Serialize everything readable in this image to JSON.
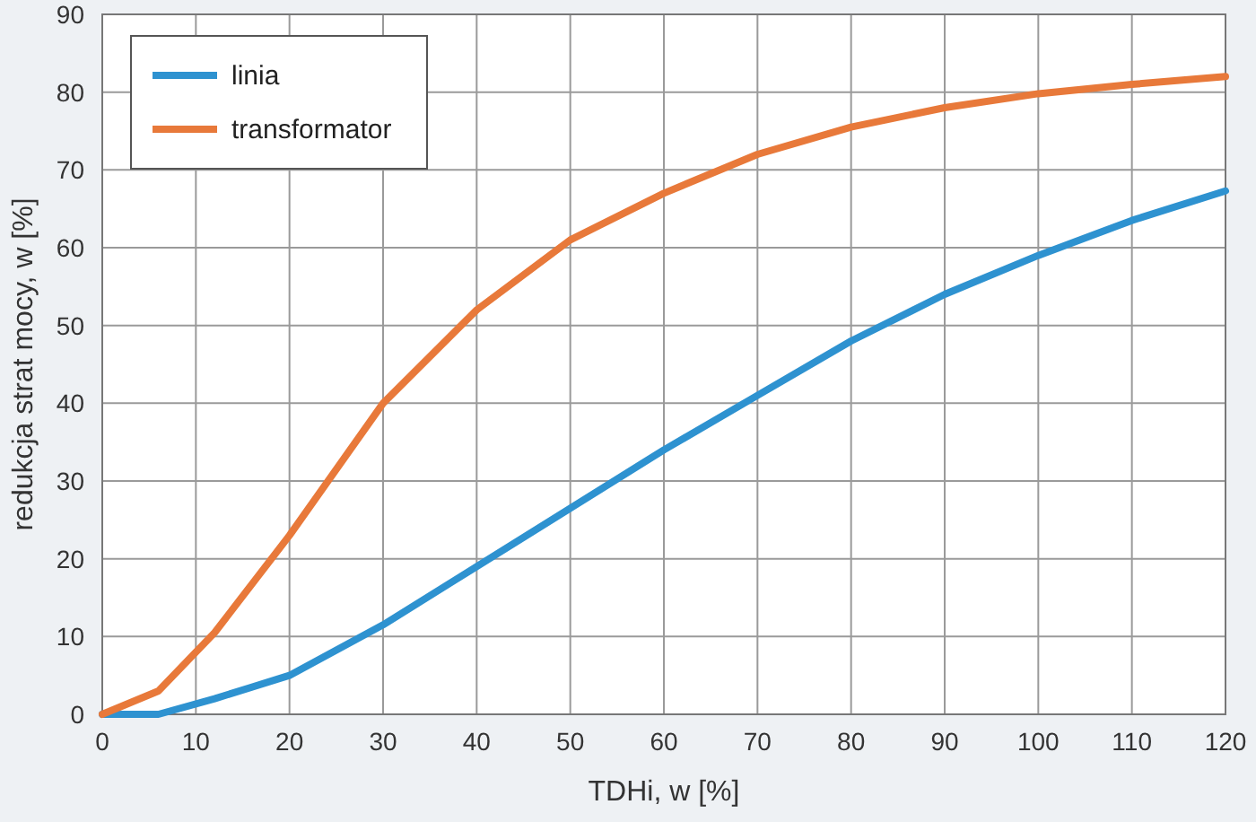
{
  "chart_data": {
    "type": "line",
    "xlabel": "TDHi, w [%]",
    "ylabel": "redukcja strat mocy, w [%]",
    "xlim": [
      0,
      120
    ],
    "xticks": [
      0,
      10,
      20,
      30,
      40,
      50,
      60,
      70,
      80,
      90,
      100,
      110,
      120
    ],
    "ylim": [
      0,
      90
    ],
    "yticks": [
      0,
      10,
      20,
      30,
      40,
      50,
      60,
      70,
      80,
      90
    ],
    "grid": true,
    "legend": "top left",
    "marker": "none",
    "line_style": "solid",
    "series": [
      {
        "name": "linia",
        "color": "#2e92d0",
        "x": [
          0,
          6,
          12,
          20,
          30,
          40,
          50,
          60,
          70,
          80,
          90,
          100,
          110,
          120
        ],
        "values": [
          0,
          0,
          2,
          5,
          11.5,
          19,
          26.5,
          34,
          41,
          48,
          54,
          59,
          63.5,
          67.3
        ]
      },
      {
        "name": "transformator",
        "color": "#e8793a",
        "x": [
          0,
          6,
          12,
          20,
          30,
          40,
          50,
          60,
          70,
          80,
          90,
          100,
          110,
          120
        ],
        "values": [
          0,
          3,
          10.5,
          23,
          40,
          52,
          61,
          67,
          72,
          75.5,
          78,
          79.8,
          81,
          82
        ]
      }
    ]
  }
}
